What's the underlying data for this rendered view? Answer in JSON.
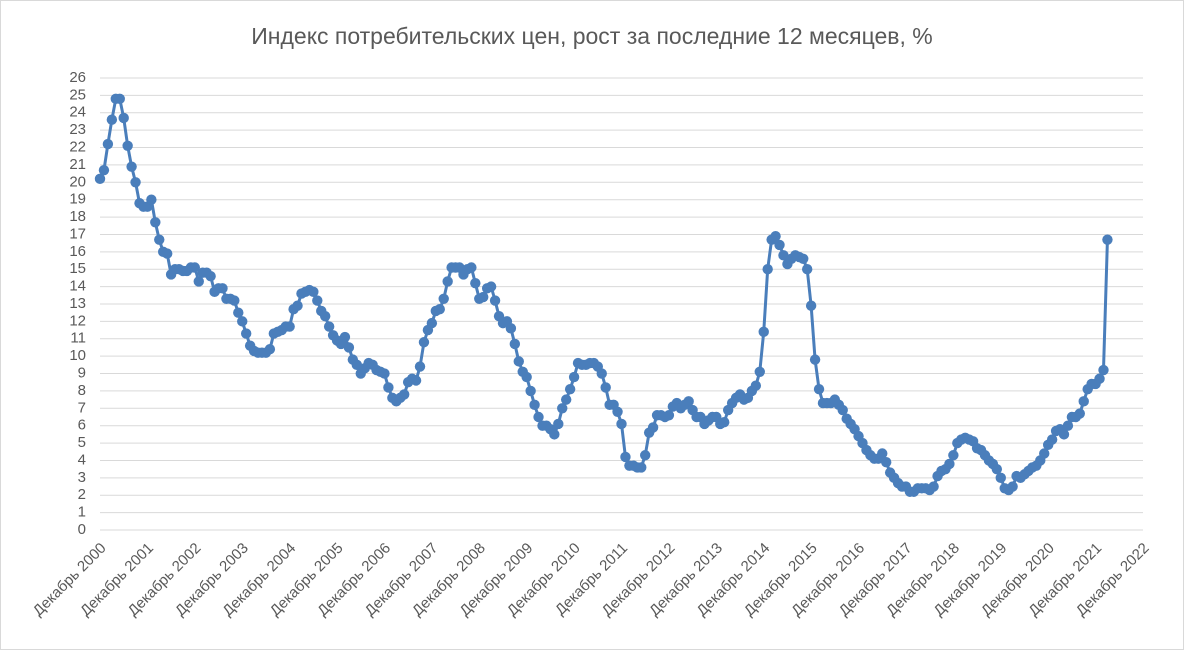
{
  "chart_data": {
    "type": "line",
    "title": "Индекс потребительских цен, рост за последние 12 месяцев, %",
    "categories": [
      "Декабрь 2000",
      null,
      null,
      null,
      null,
      null,
      null,
      null,
      null,
      null,
      null,
      null,
      "Декабрь 2001",
      null,
      null,
      null,
      null,
      null,
      null,
      null,
      null,
      null,
      null,
      null,
      "Декабрь 2002",
      null,
      null,
      null,
      null,
      null,
      null,
      null,
      null,
      null,
      null,
      null,
      "Декабрь 2003",
      null,
      null,
      null,
      null,
      null,
      null,
      null,
      null,
      null,
      null,
      null,
      "Декабрь 2004",
      null,
      null,
      null,
      null,
      null,
      null,
      null,
      null,
      null,
      null,
      null,
      "Декабрь 2005",
      null,
      null,
      null,
      null,
      null,
      null,
      null,
      null,
      null,
      null,
      null,
      "Декабрь 2006",
      null,
      null,
      null,
      null,
      null,
      null,
      null,
      null,
      null,
      null,
      null,
      "Декабрь 2007",
      null,
      null,
      null,
      null,
      null,
      null,
      null,
      null,
      null,
      null,
      null,
      "Декабрь 2008",
      null,
      null,
      null,
      null,
      null,
      null,
      null,
      null,
      null,
      null,
      null,
      "Декабрь 2009",
      null,
      null,
      null,
      null,
      null,
      null,
      null,
      null,
      null,
      null,
      null,
      "Декабрь 2010",
      null,
      null,
      null,
      null,
      null,
      null,
      null,
      null,
      null,
      null,
      null,
      "Декабрь 2011",
      null,
      null,
      null,
      null,
      null,
      null,
      null,
      null,
      null,
      null,
      null,
      "Декабрь 2012",
      null,
      null,
      null,
      null,
      null,
      null,
      null,
      null,
      null,
      null,
      null,
      "Декабрь 2013",
      null,
      null,
      null,
      null,
      null,
      null,
      null,
      null,
      null,
      null,
      null,
      "Декабрь 2014",
      null,
      null,
      null,
      null,
      null,
      null,
      null,
      null,
      null,
      null,
      null,
      "Декабрь 2015",
      null,
      null,
      null,
      null,
      null,
      null,
      null,
      null,
      null,
      null,
      null,
      "Декабрь 2016",
      null,
      null,
      null,
      null,
      null,
      null,
      null,
      null,
      null,
      null,
      null,
      "Декабрь 2017",
      null,
      null,
      null,
      null,
      null,
      null,
      null,
      null,
      null,
      null,
      null,
      "Декабрь 2018",
      null,
      null,
      null,
      null,
      null,
      null,
      null,
      null,
      null,
      null,
      null,
      "Декабрь 2019",
      null,
      null,
      null,
      null,
      null,
      null,
      null,
      null,
      null,
      null,
      null,
      "Декабрь 2020",
      null,
      null,
      null,
      null,
      null,
      null,
      null,
      null,
      null,
      null,
      null,
      "Декабрь 2021",
      null,
      null,
      null,
      null,
      null,
      null,
      null,
      null,
      null,
      null,
      null,
      "Декабрь 2022"
    ],
    "values": [
      20.2,
      20.7,
      22.2,
      23.6,
      24.8,
      24.8,
      23.7,
      22.1,
      20.9,
      20.0,
      18.8,
      18.6,
      18.6,
      19.0,
      17.7,
      16.7,
      16.0,
      15.9,
      14.7,
      15.0,
      15.0,
      14.9,
      14.9,
      15.1,
      15.1,
      14.3,
      14.8,
      14.8,
      14.6,
      13.7,
      13.9,
      13.9,
      13.3,
      13.3,
      13.2,
      12.5,
      12.0,
      11.3,
      10.6,
      10.3,
      10.2,
      10.2,
      10.2,
      10.4,
      11.3,
      11.4,
      11.5,
      11.7,
      11.7,
      12.7,
      12.9,
      13.6,
      13.7,
      13.8,
      13.7,
      13.2,
      12.6,
      12.3,
      11.7,
      11.2,
      10.9,
      10.7,
      11.1,
      10.5,
      9.8,
      9.5,
      9.0,
      9.3,
      9.6,
      9.5,
      9.2,
      9.1,
      9.0,
      8.2,
      7.6,
      7.4,
      7.6,
      7.8,
      8.5,
      8.7,
      8.6,
      9.4,
      10.8,
      11.5,
      11.9,
      12.6,
      12.7,
      13.3,
      14.3,
      15.1,
      15.1,
      15.1,
      14.7,
      15.0,
      15.1,
      14.2,
      13.3,
      13.4,
      13.9,
      14.0,
      13.2,
      12.3,
      11.9,
      12.0,
      11.6,
      10.7,
      9.7,
      9.1,
      8.8,
      8.0,
      7.2,
      6.5,
      6.0,
      6.0,
      5.8,
      5.5,
      6.1,
      7.0,
      7.5,
      8.1,
      8.8,
      9.6,
      9.5,
      9.5,
      9.6,
      9.6,
      9.4,
      9.0,
      8.2,
      7.2,
      7.2,
      6.8,
      6.1,
      4.2,
      3.7,
      3.7,
      3.6,
      3.6,
      4.3,
      5.6,
      5.9,
      6.6,
      6.6,
      6.5,
      6.6,
      7.1,
      7.3,
      7.0,
      7.2,
      7.4,
      6.9,
      6.5,
      6.5,
      6.1,
      6.3,
      6.5,
      6.5,
      6.1,
      6.2,
      6.9,
      7.3,
      7.6,
      7.8,
      7.5,
      7.6,
      8.0,
      8.3,
      9.1,
      11.4,
      15.0,
      16.7,
      16.9,
      16.4,
      15.8,
      15.3,
      15.6,
      15.8,
      15.7,
      15.6,
      15.0,
      12.9,
      9.8,
      8.1,
      7.3,
      7.3,
      7.3,
      7.5,
      7.2,
      6.9,
      6.4,
      6.1,
      5.8,
      5.4,
      5.0,
      4.6,
      4.3,
      4.1,
      4.1,
      4.4,
      3.9,
      3.3,
      3.0,
      2.7,
      2.5,
      2.5,
      2.2,
      2.2,
      2.4,
      2.4,
      2.4,
      2.3,
      2.5,
      3.1,
      3.4,
      3.5,
      3.8,
      4.3,
      5.0,
      5.2,
      5.3,
      5.2,
      5.1,
      4.7,
      4.6,
      4.3,
      4.0,
      3.8,
      3.5,
      3.0,
      2.4,
      2.3,
      2.5,
      3.1,
      3.0,
      3.2,
      3.4,
      3.6,
      3.7,
      4.0,
      4.4,
      4.9,
      5.2,
      5.7,
      5.8,
      5.5,
      6.0,
      6.5,
      6.5,
      6.7,
      7.4,
      8.1,
      8.4,
      8.4,
      8.7,
      9.2,
      16.7,
      null,
      null,
      null,
      null,
      null,
      null,
      null,
      null,
      null
    ],
    "color": "#4a7ebb",
    "ylim": [
      0,
      26
    ],
    "yticks": [
      0,
      1,
      2,
      3,
      4,
      5,
      6,
      7,
      8,
      9,
      10,
      11,
      12,
      13,
      14,
      15,
      16,
      17,
      18,
      19,
      20,
      21,
      22,
      23,
      24,
      25,
      26
    ],
    "grid": true
  }
}
